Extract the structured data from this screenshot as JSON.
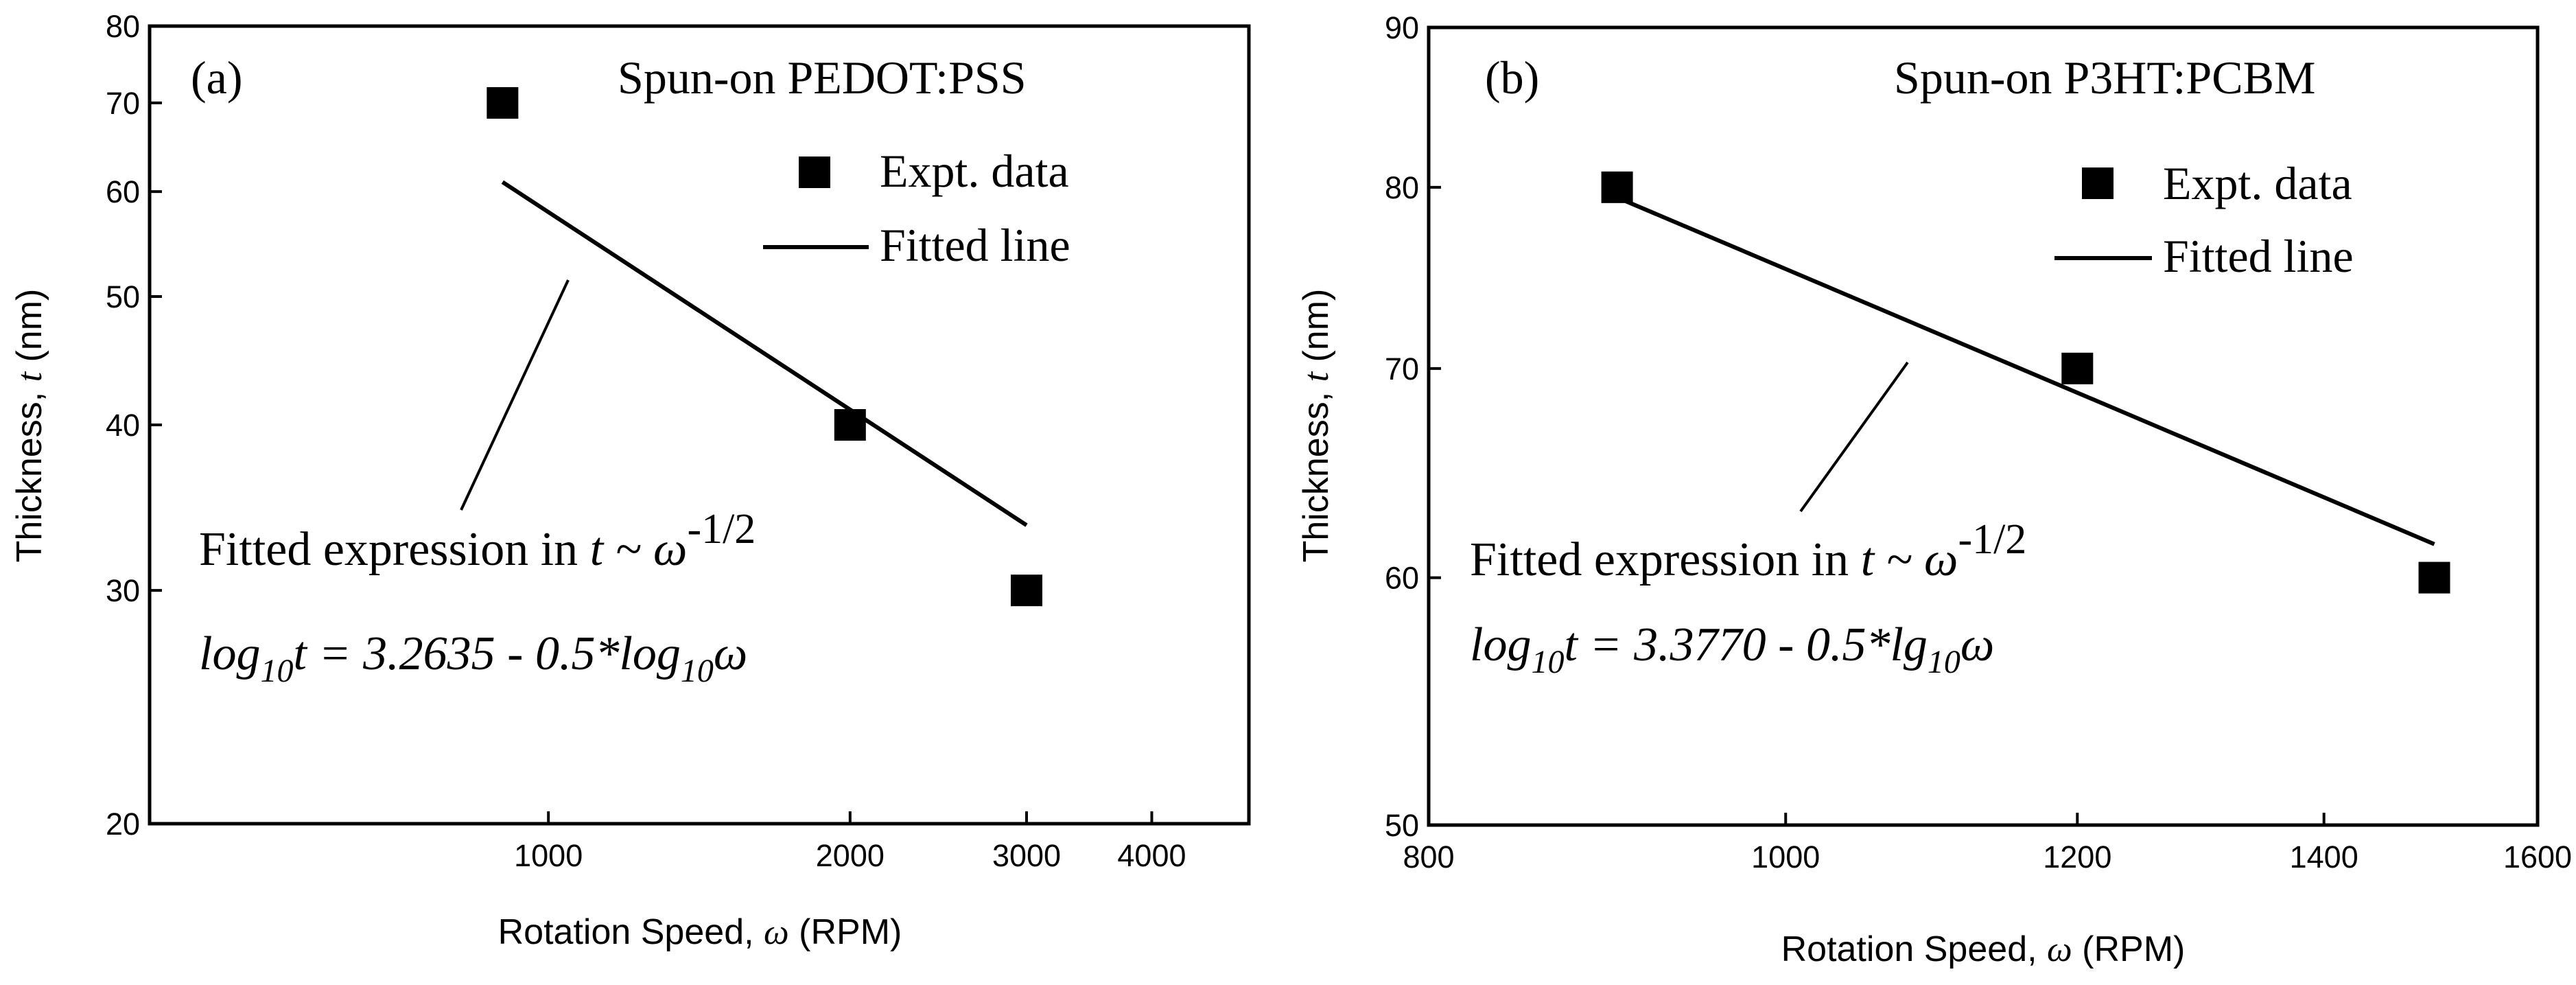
{
  "chart_data": [
    {
      "type": "scatter",
      "panel_label": "(a)",
      "title": "Spun-on PEDOT:PSS",
      "xlabel_pre": "Rotation Speed, ",
      "xlabel_sym": "ω",
      "xlabel_post": " (RPM)",
      "ylabel_pre": "Thickness, ",
      "ylabel_sym": "t",
      "ylabel_post": " (nm)",
      "xscale": "log",
      "yscale": "log",
      "xlim": [
        400,
        5000
      ],
      "ylim": [
        20,
        80
      ],
      "xticks": [
        1000,
        2000,
        3000,
        4000
      ],
      "xtick_labels": [
        "1000",
        "2000",
        "3000",
        "4000"
      ],
      "yticks": [
        20,
        30,
        40,
        50,
        60,
        70,
        80
      ],
      "ytick_labels": [
        "20",
        "30",
        "40",
        "50",
        "60",
        "70",
        "80"
      ],
      "legend": {
        "position": "top-right",
        "marker_label": "Expt. data",
        "line_label": "Fitted line"
      },
      "series": [
        {
          "name": "Expt. data",
          "kind": "points",
          "x": [
            900,
            2000,
            3000
          ],
          "y": [
            70,
            40,
            30
          ]
        },
        {
          "name": "Fitted line",
          "kind": "line",
          "x": [
            900,
            3000
          ],
          "y": [
            61,
            33.6
          ]
        }
      ],
      "annotation": {
        "expr_pre": "Fitted expression in ",
        "expr_var": "t ~ ω",
        "expr_exp": "-1/2",
        "formula_log1": "log",
        "formula_sub1": "10",
        "formula_mid": "t = 3.2635 - 0.5*log",
        "formula_sub2": "10",
        "formula_end": "ω"
      }
    },
    {
      "type": "scatter",
      "panel_label": "(b)",
      "title": "Spun-on P3HT:PCBM",
      "xlabel_pre": "Rotation Speed, ",
      "xlabel_sym": "ω",
      "xlabel_post": " (RPM)",
      "ylabel_pre": "Thickness, ",
      "ylabel_sym": "t",
      "ylabel_post": " (nm)",
      "xscale": "log",
      "yscale": "log",
      "xlim": [
        800,
        1600
      ],
      "ylim": [
        50,
        90
      ],
      "xticks": [
        800,
        1000,
        1200,
        1400,
        1600
      ],
      "xtick_labels": [
        "800",
        "1000",
        "1200",
        "1400",
        "1600"
      ],
      "yticks": [
        50,
        60,
        70,
        80,
        90
      ],
      "ytick_labels": [
        "50",
        "60",
        "70",
        "80",
        "90"
      ],
      "legend": {
        "position": "top-right",
        "marker_label": "Expt. data",
        "line_label": "Fitted line"
      },
      "series": [
        {
          "name": "Expt. data",
          "kind": "points",
          "x": [
            900,
            1200,
            1500
          ],
          "y": [
            80,
            70,
            60
          ]
        },
        {
          "name": "Fitted line",
          "kind": "line",
          "x": [
            900,
            1500
          ],
          "y": [
            79.4,
            61.5
          ]
        }
      ],
      "annotation": {
        "expr_pre": "Fitted expression in ",
        "expr_var": "t ~ ω",
        "expr_exp": "-1/2",
        "formula_log1": "log",
        "formula_sub1": "10",
        "formula_mid": "t = 3.3770 - 0.5*lg",
        "formula_sub2": "10",
        "formula_end": "ω"
      }
    }
  ]
}
